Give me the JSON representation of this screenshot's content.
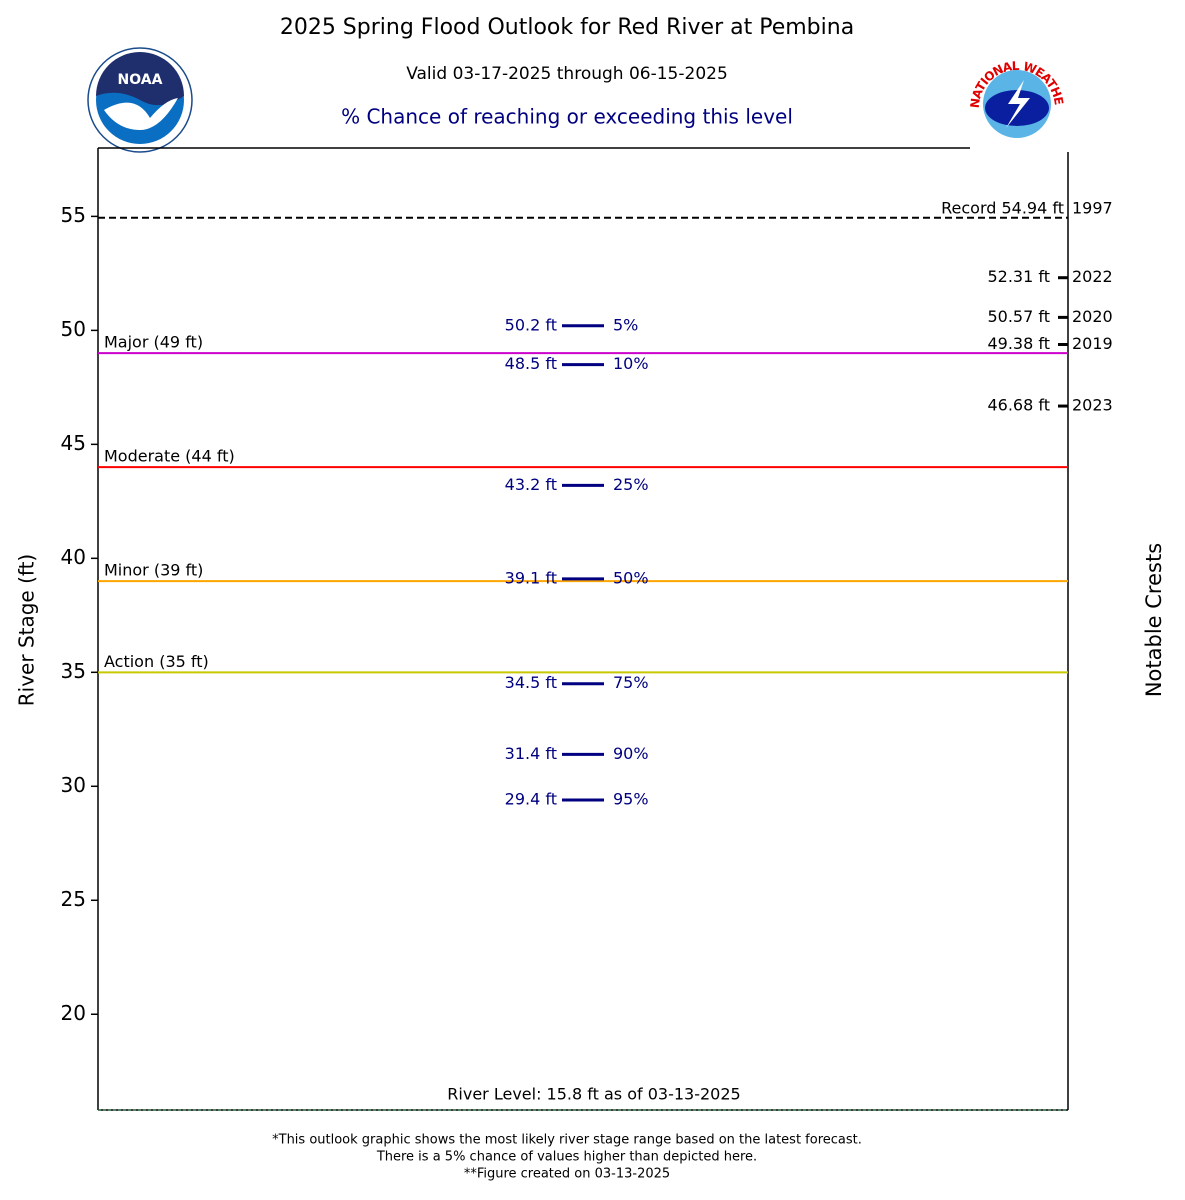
{
  "chart_data": {
    "type": "probability-stage",
    "title": "2025 Spring Flood Outlook for Red River at Pembina",
    "subtitle": "Valid 03-17-2025 through 06-15-2025",
    "heading": "% Chance of reaching or exceeding this level",
    "ylabel": "River Stage (ft)",
    "y2label": "Notable Crests",
    "ylim": [
      15.8,
      58
    ],
    "yticks": [
      20,
      25,
      30,
      35,
      40,
      45,
      50,
      55
    ],
    "color": "#000080",
    "values": [
      50.2,
      48.5,
      43.2,
      39.1,
      34.5,
      31.4,
      29.4
    ],
    "value_labels": [
      "50.2 ft",
      "48.5 ft",
      "43.2 ft",
      "39.1 ft",
      "34.5 ft",
      "31.4 ft",
      "29.4 ft"
    ],
    "probability_labels": [
      "5%",
      "10%",
      "25%",
      "50%",
      "75%",
      "90%",
      "95%"
    ],
    "thresholds": [
      {
        "label": "Major (49 ft)",
        "value": 49,
        "color": "#cc00cc"
      },
      {
        "label": "Moderate (44 ft)",
        "value": 44,
        "color": "#ff0000"
      },
      {
        "label": "Minor (39 ft)",
        "value": 39,
        "color": "#ffa500"
      },
      {
        "label": "Action (35 ft)",
        "value": 35,
        "color": "#c8c800"
      }
    ],
    "record": {
      "label": "Record 54.94 ft",
      "year": "1997",
      "value": 54.94
    },
    "crests": {
      "values": [
        52.31,
        50.57,
        49.38,
        46.68
      ],
      "value_labels": [
        "52.31 ft",
        "50.57 ft",
        "49.38 ft",
        "46.68 ft"
      ],
      "years": [
        "2022",
        "2020",
        "2019",
        "2023"
      ]
    },
    "river_level": {
      "label": "River Level: 15.8 ft as of 03-13-2025",
      "value": 15.8,
      "color": "#2e8b57"
    },
    "footnotes": [
      "*This outlook graphic shows the most likely river stage range based on the latest forecast.",
      "There is a 5% chance of values higher than depicted here.",
      "**Figure created on 03-13-2025"
    ]
  },
  "logos": {
    "noaa": "NOAA",
    "nws": "NATIONAL WEATHER SERVICE"
  }
}
